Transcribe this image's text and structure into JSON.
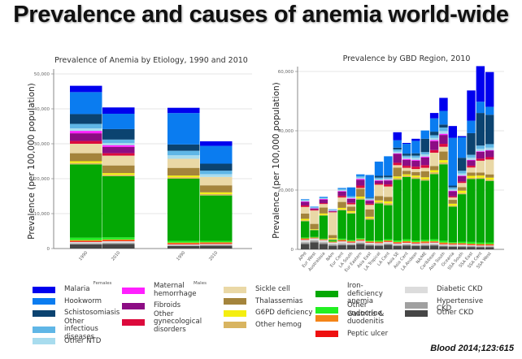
{
  "title": "Prevalence and causes of anemia world-wide",
  "citation": "Blood 2014;123:615",
  "categories": [
    {
      "key": "malaria",
      "label": "Malaria",
      "color": "#0000ee"
    },
    {
      "key": "hookworm",
      "label": "Hookworm",
      "color": "#0a7cf0"
    },
    {
      "key": "schisto",
      "label": "Schistosomiasis",
      "color": "#0b4370"
    },
    {
      "key": "other_inf",
      "label": "Other infectious diseases",
      "color": "#5fb6e6"
    },
    {
      "key": "other_ntd",
      "label": "Other NTD",
      "color": "#a8dcee"
    },
    {
      "key": "mat_hem",
      "label": "Maternal hemorrhage",
      "color": "#ff20ff"
    },
    {
      "key": "fibroids",
      "label": "Fibroids",
      "color": "#8c0c84"
    },
    {
      "key": "other_gyn",
      "label": "Other gynecological disorders",
      "color": "#dc0a3c"
    },
    {
      "key": "sickle",
      "label": "Sickle cell",
      "color": "#ead8a6"
    },
    {
      "key": "thal",
      "label": "Thalassemias",
      "color": "#a4843c"
    },
    {
      "key": "g6pd",
      "label": "G6PD deficiency",
      "color": "#f4ee10"
    },
    {
      "key": "other_hemog",
      "label": "Other hemog",
      "color": "#d8b460"
    },
    {
      "key": "ida",
      "label": "Iron-deficiency anemia",
      "color": "#04a804"
    },
    {
      "key": "endocrine",
      "label": "Other endocrine",
      "color": "#22f022"
    },
    {
      "key": "gastritis",
      "label": "Gastritis & duodenitis",
      "color": "#f48418"
    },
    {
      "key": "peptic",
      "label": "Peptic ulcer",
      "color": "#ee1010"
    },
    {
      "key": "diab_ckd",
      "label": "Diabetic CKD",
      "color": "#dcdcdc"
    },
    {
      "key": "hyp_ckd",
      "label": "Hypertensive CKD",
      "color": "#a0a0a0"
    },
    {
      "key": "other_ckd",
      "label": "Other CKD",
      "color": "#464646"
    }
  ],
  "chart_data": [
    {
      "type": "bar",
      "stacked": true,
      "title": "Prevalence of Anemia by Etiology, 1990 and 2010",
      "xlabel": "",
      "ylabel": "Prevalence (per 100,000 population)",
      "ylim": [
        0,
        50000
      ],
      "yticks": [
        0,
        10000,
        20000,
        30000,
        40000,
        50000
      ],
      "ytick_labels": [
        "0",
        "10,000",
        "20,000",
        "30,000",
        "40,000",
        "50,000"
      ],
      "grid": true,
      "groups": [
        "Females",
        "Males"
      ],
      "categories": [
        "1990",
        "2010",
        "1990",
        "2010"
      ],
      "category_groups": [
        "Females",
        "Females",
        "Males",
        "Males"
      ],
      "series_order_bottom_to_top": [
        "other_ckd",
        "hyp_ckd",
        "diab_ckd",
        "peptic",
        "gastritis",
        "endocrine",
        "ida",
        "other_hemog",
        "g6pd",
        "thal",
        "sickle",
        "other_gyn",
        "fibroids",
        "mat_hem",
        "other_ntd",
        "other_inf",
        "schisto",
        "hookworm",
        "malaria"
      ],
      "values": {
        "other_ckd": [
          1200,
          1300,
          700,
          800
        ],
        "hyp_ckd": [
          300,
          300,
          200,
          200
        ],
        "diab_ckd": [
          400,
          500,
          300,
          300
        ],
        "peptic": [
          200,
          200,
          200,
          200
        ],
        "gastritis": [
          300,
          300,
          300,
          300
        ],
        "endocrine": [
          700,
          600,
          500,
          400
        ],
        "ida": [
          21000,
          17500,
          17800,
          13000
        ],
        "other_hemog": [
          400,
          400,
          400,
          400
        ],
        "g6pd": [
          500,
          500,
          500,
          500
        ],
        "thal": [
          2300,
          2200,
          2200,
          2000
        ],
        "sickle": [
          2700,
          2800,
          2600,
          2400
        ],
        "other_gyn": [
          800,
          700,
          0,
          0
        ],
        "fibroids": [
          2200,
          1800,
          0,
          0
        ],
        "mat_hem": [
          700,
          500,
          0,
          0
        ],
        "other_ntd": [
          700,
          600,
          1000,
          800
        ],
        "other_inf": [
          1300,
          1000,
          1300,
          1000
        ],
        "schisto": [
          2800,
          3000,
          1800,
          2000
        ],
        "hookworm": [
          6300,
          4400,
          9000,
          5100
        ],
        "malaria": [
          1800,
          1800,
          1500,
          1300
        ]
      }
    },
    {
      "type": "bar",
      "stacked": true,
      "title": "Prevalence by GBD Region, 2010",
      "xlabel": "",
      "ylabel": "Prevalence (per 100,000 population)",
      "ylim": [
        0,
        60000
      ],
      "yticks": [
        0,
        20000,
        40000,
        60000
      ],
      "ytick_labels": [
        "0",
        "20,000",
        "40,000",
        "60,000"
      ],
      "grid": true,
      "categories": [
        "APHI",
        "Eur West",
        "Australasia",
        "NAm",
        "Eur Cent",
        "LA South",
        "Eur Eastern",
        "Asia East",
        "LA Tropical",
        "LA Cent",
        "Asia SE",
        "Asia Cent",
        "LA Andean",
        "NA/ME",
        "Caribbean",
        "Asia South",
        "Oceania",
        "SSA South",
        "SSA East",
        "SSA Cent",
        "SSA West"
      ],
      "series_order_bottom_to_top": [
        "other_ckd",
        "hyp_ckd",
        "diab_ckd",
        "peptic",
        "gastritis",
        "endocrine",
        "ida",
        "other_hemog",
        "g6pd",
        "thal",
        "sickle",
        "other_gyn",
        "fibroids",
        "mat_hem",
        "other_ntd",
        "other_inf",
        "schisto",
        "hookworm",
        "malaria"
      ],
      "values": {
        "other_ckd": [
          1800,
          2400,
          1800,
          1200,
          1400,
          1400,
          1800,
          1300,
          1200,
          1500,
          1100,
          1300,
          1100,
          1200,
          1300,
          1000,
          900,
          800,
          800,
          700,
          700
        ],
        "hyp_ckd": [
          600,
          600,
          600,
          500,
          600,
          400,
          500,
          400,
          400,
          400,
          400,
          400,
          400,
          400,
          400,
          300,
          300,
          300,
          300,
          300,
          300
        ],
        "diab_ckd": [
          800,
          700,
          700,
          600,
          700,
          500,
          600,
          500,
          500,
          600,
          500,
          500,
          500,
          500,
          600,
          400,
          400,
          500,
          300,
          300,
          300
        ],
        "peptic": [
          200,
          100,
          100,
          100,
          200,
          200,
          200,
          200,
          200,
          200,
          200,
          200,
          200,
          200,
          200,
          200,
          200,
          200,
          200,
          200,
          200
        ],
        "gastritis": [
          300,
          200,
          200,
          200,
          300,
          300,
          300,
          300,
          300,
          300,
          300,
          400,
          300,
          400,
          300,
          400,
          300,
          300,
          300,
          300,
          300
        ],
        "endocrine": [
          300,
          200,
          200,
          200,
          400,
          300,
          400,
          300,
          400,
          400,
          500,
          600,
          500,
          500,
          600,
          600,
          300,
          500,
          600,
          500,
          500
        ],
        "ida": [
          5500,
          2300,
          7800,
          400,
          9600,
          9000,
          13000,
          7000,
          12500,
          11500,
          20500,
          21000,
          20800,
          20000,
          22000,
          25800,
          12000,
          16000,
          21200,
          21500,
          20800
        ],
        "other_hemog": [
          300,
          100,
          200,
          300,
          300,
          300,
          400,
          500,
          500,
          600,
          500,
          400,
          500,
          500,
          600,
          600,
          300,
          400,
          400,
          400,
          400
        ],
        "g6pd": [
          500,
          200,
          500,
          300,
          500,
          500,
          600,
          500,
          500,
          700,
          600,
          500,
          600,
          600,
          700,
          800,
          700,
          800,
          700,
          700,
          700
        ],
        "thal": [
          1800,
          1800,
          2000,
          1000,
          2000,
          1500,
          2600,
          2500,
          1500,
          1500,
          3000,
          1200,
          1200,
          2000,
          1400,
          2900,
          1300,
          1200,
          1100,
          1000,
          1100
        ],
        "sickle": [
          2200,
          4500,
          1200,
          7700,
          1500,
          800,
          300,
          1500,
          3800,
          3500,
          800,
          1000,
          1000,
          1200,
          4500,
          1600,
          800,
          1400,
          1700,
          4000,
          5000
        ],
        "other_gyn": [
          500,
          300,
          300,
          200,
          500,
          500,
          800,
          400,
          400,
          700,
          800,
          700,
          800,
          900,
          900,
          1000,
          400,
          500,
          600,
          700,
          800
        ],
        "fibroids": [
          1200,
          400,
          1200,
          200,
          1500,
          1300,
          2000,
          1000,
          900,
          1300,
          3000,
          2000,
          2000,
          2600,
          3000,
          3000,
          1700,
          1800,
          1800,
          2300,
          2200
        ],
        "mat_hem": [
          200,
          100,
          200,
          100,
          200,
          200,
          300,
          200,
          200,
          200,
          200,
          300,
          300,
          300,
          400,
          400,
          200,
          200,
          200,
          200,
          200
        ],
        "other_ntd": [
          300,
          100,
          200,
          200,
          400,
          300,
          400,
          300,
          400,
          400,
          600,
          500,
          700,
          700,
          700,
          900,
          400,
          700,
          700,
          800,
          800
        ],
        "other_inf": [
          200,
          200,
          200,
          200,
          300,
          400,
          500,
          400,
          500,
          500,
          700,
          600,
          700,
          800,
          900,
          1200,
          700,
          900,
          1000,
          1100,
          1200
        ],
        "schisto": [
          0,
          0,
          0,
          0,
          0,
          0,
          0,
          200,
          600,
          600,
          600,
          700,
          800,
          4500,
          1200,
          1000,
          600,
          4400,
          7300,
          11000,
          9900
        ],
        "hookworm": [
          200,
          200,
          300,
          100,
          300,
          3000,
          600,
          7600,
          4800,
          6500,
          2500,
          3300,
          4200,
          2800,
          4500,
          4600,
          16100,
          6900,
          4200,
          3800,
          2700
        ],
        "malaria": [
          0,
          0,
          0,
          0,
          0,
          0,
          0,
          0,
          0,
          0,
          2700,
          300,
          700,
          0,
          1800,
          4400,
          4000,
          400,
          10200,
          12000,
          11700
        ]
      }
    }
  ],
  "legend_columns": [
    [
      "malaria",
      "hookworm",
      "schisto",
      "other_inf",
      "other_ntd"
    ],
    [
      "mat_hem",
      "fibroids",
      "other_gyn"
    ],
    [
      "sickle",
      "thal",
      "g6pd",
      "other_hemog"
    ],
    [
      "ida",
      "endocrine",
      "gastritis",
      "peptic"
    ],
    [
      "diab_ckd",
      "hyp_ckd",
      "other_ckd"
    ]
  ]
}
